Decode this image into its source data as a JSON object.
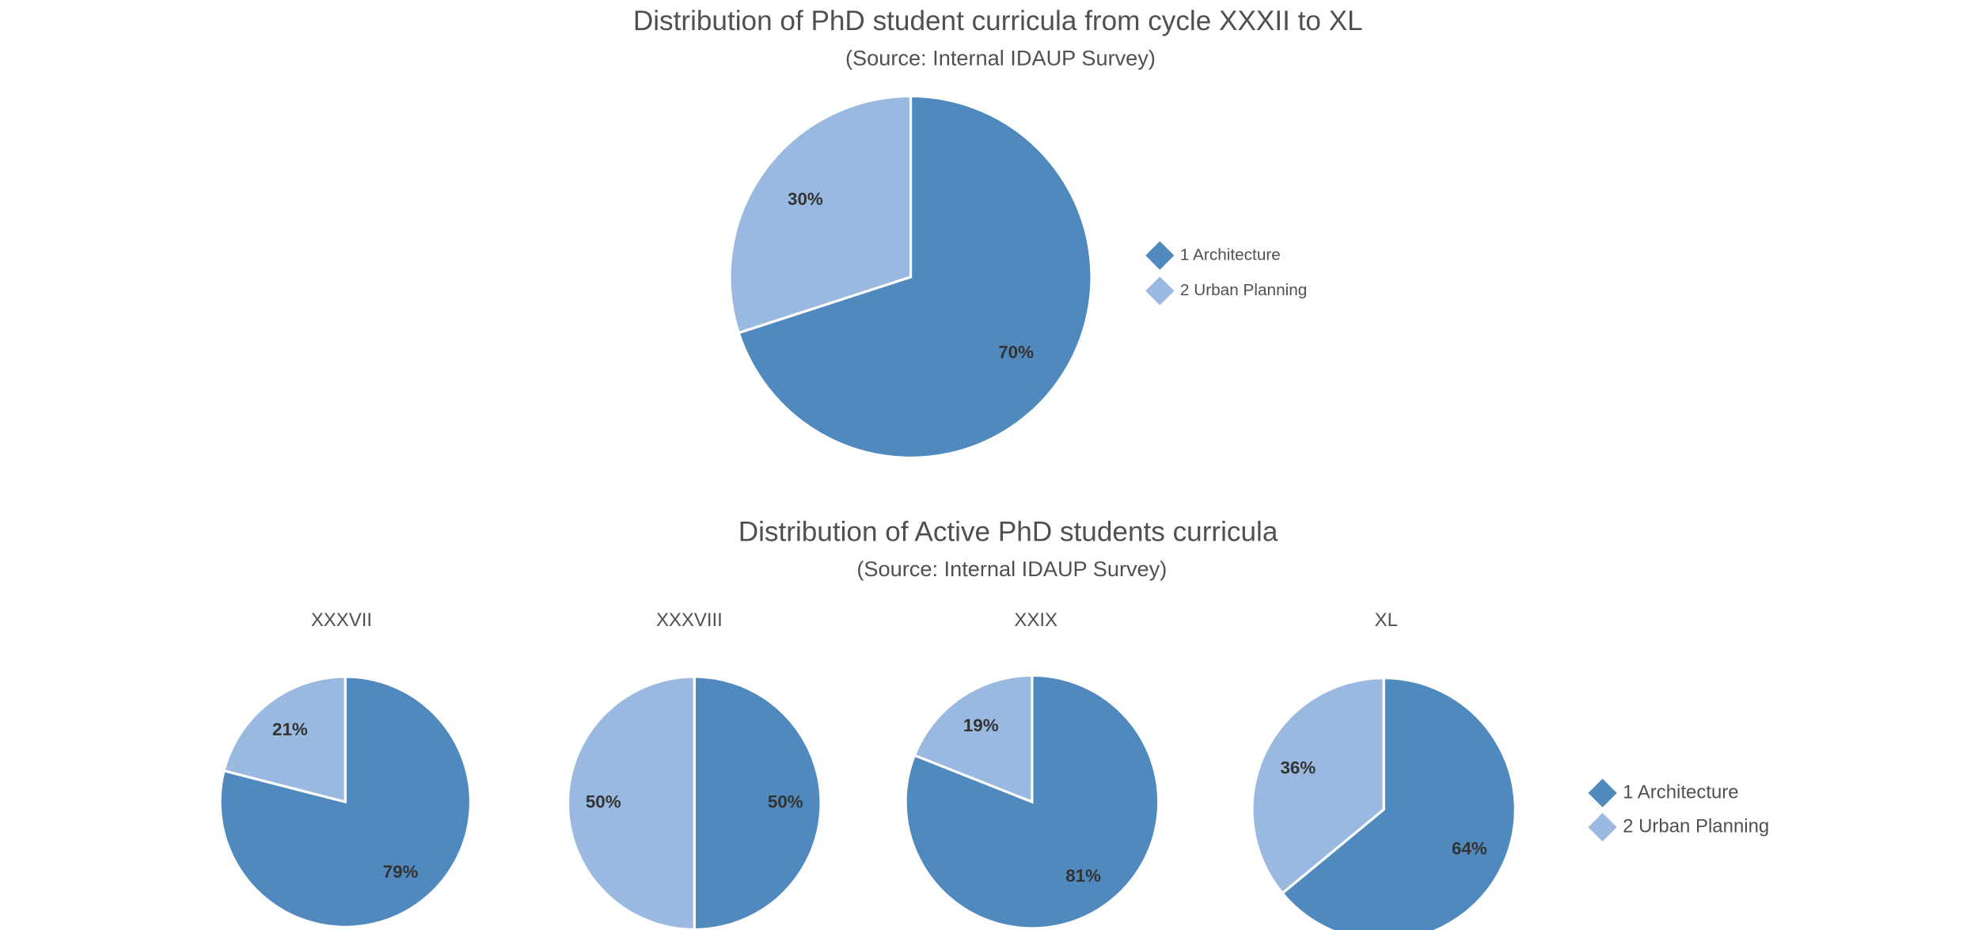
{
  "chart_data": [
    {
      "type": "pie",
      "title": "Distribution of PhD student curricula from cycle XXXII to XL",
      "subtitle": "(Source: Internal IDAUP Survey)",
      "categories": [
        "1 Architecture",
        "2 Urban Planning"
      ],
      "values": [
        70,
        30
      ],
      "value_labels": [
        "70%",
        "30%"
      ],
      "colors": [
        "#4f89bd",
        "#9ab9e0"
      ]
    },
    {
      "type": "pie",
      "title": "XXXVII",
      "values": [
        79,
        21
      ],
      "value_labels": [
        "79%",
        "21%"
      ],
      "colors": [
        "#4f89bd",
        "#9ab9e0"
      ]
    },
    {
      "type": "pie",
      "title": "XXXVIII",
      "values": [
        50,
        50
      ],
      "value_labels": [
        "50%",
        "50%"
      ],
      "colors": [
        "#4f89bd",
        "#9ab9e0"
      ]
    },
    {
      "type": "pie",
      "title": "XXIX",
      "values": [
        81,
        19
      ],
      "value_labels": [
        "81%",
        "19%"
      ],
      "colors": [
        "#4f89bd",
        "#9ab9e0"
      ]
    },
    {
      "type": "pie",
      "title": "XL",
      "values": [
        64,
        36
      ],
      "value_labels": [
        "64%",
        "36%"
      ],
      "colors": [
        "#4f89bd",
        "#9ab9e0"
      ]
    }
  ],
  "panel": {
    "title": "Distribution of Active PhD students curricula",
    "subtitle": "(Source: Internal IDAUP Survey)",
    "legend": [
      "1 Architecture",
      "2 Urban Planning"
    ],
    "colors": [
      "#4f89bd",
      "#9ab9e0"
    ]
  }
}
